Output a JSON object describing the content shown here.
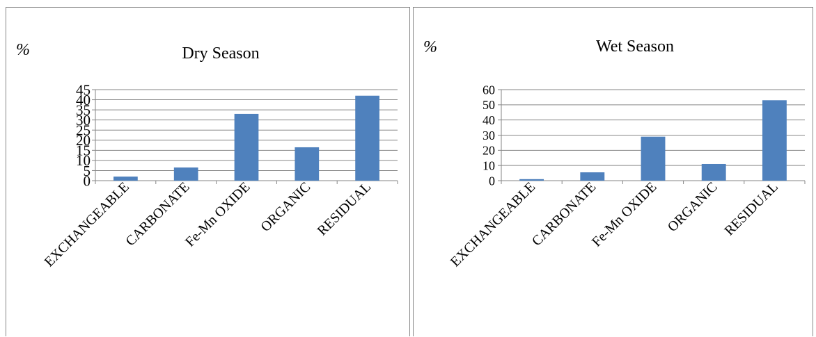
{
  "chart_data": [
    {
      "type": "bar",
      "title": "Dry Season",
      "unit_label": "%",
      "categories": [
        "EXCHANGEABLE",
        "CARBONATE",
        "Fe-Mn OXIDE",
        "ORGANIC",
        "RESIDUAL"
      ],
      "values": [
        2,
        6.5,
        33,
        16.5,
        42
      ],
      "ylim": [
        0,
        45
      ],
      "yticks": [
        0,
        5,
        10,
        15,
        20,
        25,
        30,
        35,
        40,
        45
      ],
      "grid": true,
      "bar_color": "#4f81bd"
    },
    {
      "type": "bar",
      "title": "Wet Season",
      "unit_label": "%",
      "categories": [
        "EXCHANGEABLE",
        "CARBONATE",
        "Fe-Mn OXIDE",
        "ORGANIC",
        "RESIDUAL"
      ],
      "values": [
        1,
        5.5,
        29,
        11,
        53
      ],
      "ylim": [
        0,
        60
      ],
      "yticks": [
        0,
        10,
        20,
        30,
        40,
        50,
        60
      ],
      "grid": true,
      "bar_color": "#4f81bd"
    }
  ]
}
